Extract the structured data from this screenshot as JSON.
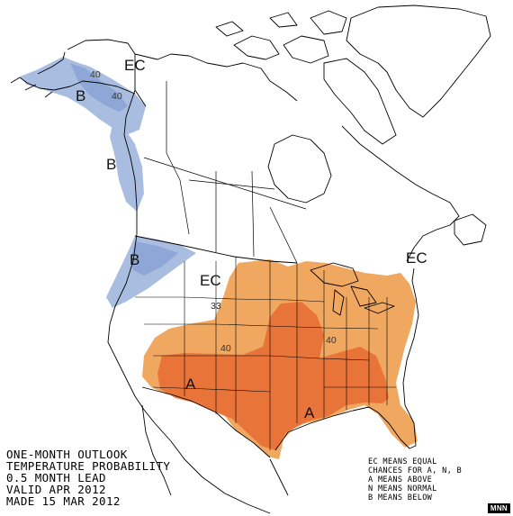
{
  "info_text": [
    "ONE-MONTH OUTLOOK",
    "TEMPERATURE PROBABILITY",
    "0.5 MONTH LEAD",
    "VALID APR 2012",
    "MADE 15 MAR 2012"
  ],
  "legend_text": [
    "EC MEANS EQUAL",
    "CHANCES FOR A, N, B",
    "A MEANS ABOVE",
    "N MEANS NORMAL",
    "B MEANS BELOW"
  ],
  "region_labels": {
    "ec_alaska": "EC",
    "b_alaska": "B",
    "b_bc_coast": "B",
    "b_pacific_nw": "B",
    "ec_west": "EC",
    "ec_east": "EC",
    "a_southwest": "A",
    "a_southeast": "A"
  },
  "contour_labels": {
    "alaska_40_north": "40",
    "alaska_40_south": "40",
    "west_33": "33",
    "central_40": "40",
    "east_40": "40"
  },
  "credit": "MNN",
  "colors": {
    "below_light": "#a9bde0",
    "below_mid": "#8fa7d6",
    "above_33": "#f0a860",
    "above_40": "#e8743a",
    "outline": "#000000"
  }
}
